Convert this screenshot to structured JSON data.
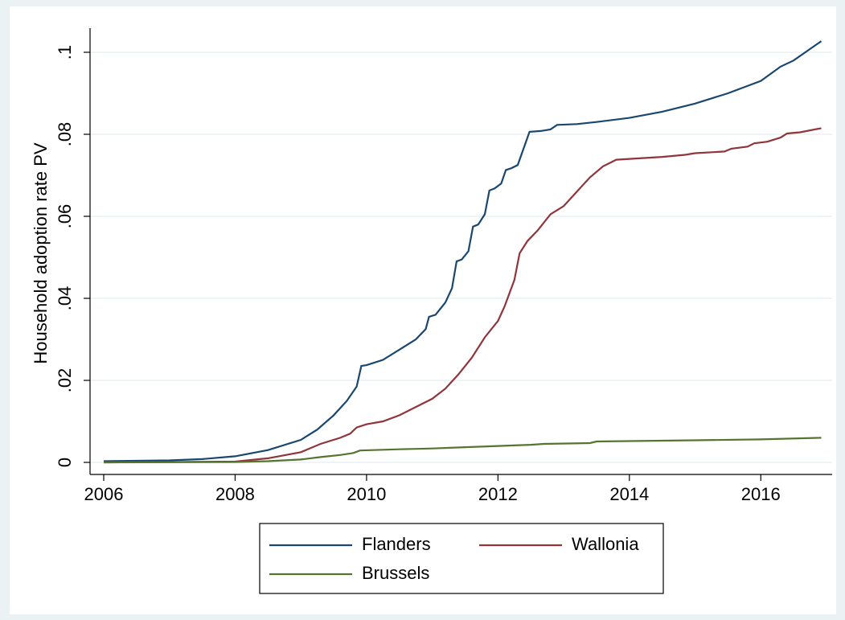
{
  "chart_data": {
    "type": "line",
    "ylabel": "Household adoption rate PV",
    "xlim": [
      2006,
      2017
    ],
    "xticks": [
      2006,
      2008,
      2010,
      2012,
      2014,
      2016
    ],
    "ylim": [
      0,
      0.1
    ],
    "yticks": [
      0,
      {
        "value": 0.02,
        "label": ".02"
      },
      {
        "value": 0.04,
        "label": ".04"
      },
      {
        "value": 0.06,
        "label": ".06"
      },
      {
        "value": 0.08,
        "label": ".08"
      },
      {
        "value": 0.1,
        "label": ".1"
      }
    ],
    "grid": true,
    "legend": "bottom",
    "series": [
      {
        "name": "Flanders",
        "color": "#1a476f",
        "x": [
          2006.0,
          2007.0,
          2007.5,
          2008.0,
          2008.5,
          2009.0,
          2009.25,
          2009.5,
          2009.7,
          2009.85,
          2009.92,
          2010.0,
          2010.25,
          2010.5,
          2010.75,
          2010.9,
          2010.95,
          2011.05,
          2011.2,
          2011.3,
          2011.37,
          2011.45,
          2011.55,
          2011.62,
          2011.7,
          2011.8,
          2011.87,
          2011.95,
          2012.05,
          2012.12,
          2012.2,
          2012.3,
          2012.4,
          2012.48,
          2012.65,
          2012.8,
          2012.9,
          2013.2,
          2013.5,
          2014.0,
          2014.5,
          2015.0,
          2015.5,
          2016.0,
          2016.3,
          2016.5,
          2016.92
        ],
        "values": [
          0.0003,
          0.0005,
          0.0008,
          0.0015,
          0.003,
          0.0055,
          0.008,
          0.0115,
          0.015,
          0.0185,
          0.0235,
          0.0237,
          0.025,
          0.0275,
          0.03,
          0.0325,
          0.0355,
          0.036,
          0.039,
          0.0425,
          0.049,
          0.0495,
          0.0515,
          0.0575,
          0.058,
          0.0605,
          0.0663,
          0.0668,
          0.068,
          0.0713,
          0.0717,
          0.0725,
          0.077,
          0.0806,
          0.0808,
          0.0812,
          0.0823,
          0.0825,
          0.083,
          0.084,
          0.0855,
          0.0875,
          0.09,
          0.093,
          0.0965,
          0.098,
          0.1027
        ]
      },
      {
        "name": "Wallonia",
        "color": "#90353b",
        "x": [
          2006.0,
          2008.0,
          2008.5,
          2009.0,
          2009.3,
          2009.6,
          2009.75,
          2009.85,
          2010.0,
          2010.25,
          2010.5,
          2010.75,
          2011.0,
          2011.2,
          2011.4,
          2011.6,
          2011.8,
          2012.0,
          2012.1,
          2012.25,
          2012.33,
          2012.45,
          2012.6,
          2012.8,
          2013.0,
          2013.2,
          2013.4,
          2013.6,
          2013.8,
          2014.0,
          2014.5,
          2014.85,
          2015.0,
          2015.45,
          2015.55,
          2015.8,
          2015.9,
          2016.1,
          2016.3,
          2016.4,
          2016.6,
          2016.92
        ],
        "values": [
          0,
          0.0002,
          0.001,
          0.0025,
          0.0045,
          0.006,
          0.007,
          0.0085,
          0.0093,
          0.01,
          0.0115,
          0.0135,
          0.0155,
          0.018,
          0.0215,
          0.0255,
          0.0305,
          0.0345,
          0.038,
          0.0445,
          0.051,
          0.054,
          0.0565,
          0.0605,
          0.0625,
          0.066,
          0.0695,
          0.0722,
          0.0738,
          0.074,
          0.0745,
          0.075,
          0.0754,
          0.0758,
          0.0765,
          0.077,
          0.0778,
          0.0782,
          0.0792,
          0.0802,
          0.0805,
          0.0815
        ]
      },
      {
        "name": "Brussels",
        "color": "#55752f",
        "x": [
          2006.0,
          2008.0,
          2008.5,
          2009.0,
          2009.3,
          2009.6,
          2009.8,
          2009.9,
          2010.5,
          2011.0,
          2011.5,
          2012.0,
          2012.5,
          2012.7,
          2013.4,
          2013.5,
          2014.0,
          2015.0,
          2016.0,
          2016.92
        ],
        "values": [
          0,
          0.0001,
          0.0003,
          0.0007,
          0.0013,
          0.0018,
          0.0023,
          0.0029,
          0.0032,
          0.0034,
          0.0037,
          0.004,
          0.0043,
          0.0045,
          0.0047,
          0.0051,
          0.0052,
          0.0054,
          0.0056,
          0.006
        ]
      }
    ]
  }
}
